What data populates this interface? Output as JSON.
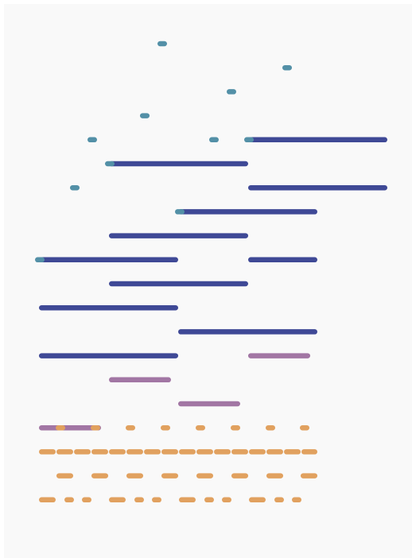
{
  "colors": {
    "background": "#f9f9f9",
    "teal": "#5390a7",
    "navy": "#3f4996",
    "mauve": "#a276a4",
    "orange": "#e1a15f"
  },
  "rows": [
    {
      "row": 0,
      "segments": [
        {
          "start": 154.5,
          "end": 155.5,
          "color": "teal"
        }
      ]
    },
    {
      "row": 1,
      "segments": [
        {
          "start": 311.5,
          "end": 312.5,
          "color": "teal"
        }
      ]
    },
    {
      "row": 2,
      "segments": [
        {
          "start": 241.5,
          "end": 242.5,
          "color": "teal"
        }
      ]
    },
    {
      "row": 3,
      "segments": [
        {
          "start": 132.5,
          "end": 133.5,
          "color": "teal"
        }
      ]
    },
    {
      "row": 4,
      "segments": [
        {
          "start": 66.5,
          "end": 67.5,
          "color": "teal"
        },
        {
          "start": 219.5,
          "end": 220.5,
          "color": "teal"
        },
        {
          "start": 263,
          "end": 438,
          "color": "navy"
        },
        {
          "start": 263.5,
          "end": 264.5,
          "color": "teal"
        }
      ]
    },
    {
      "row": 5,
      "segments": [
        {
          "start": 88,
          "end": 263,
          "color": "navy"
        },
        {
          "start": 88.5,
          "end": 89.5,
          "color": "teal"
        }
      ]
    },
    {
      "row": 6,
      "segments": [
        {
          "start": 44.5,
          "end": 45.5,
          "color": "teal"
        },
        {
          "start": 263,
          "end": 438,
          "color": "navy"
        }
      ]
    },
    {
      "row": 7,
      "segments": [
        {
          "start": 175,
          "end": 350,
          "color": "navy"
        },
        {
          "start": 176.5,
          "end": 177.5,
          "color": "teal"
        }
      ]
    },
    {
      "row": 8,
      "segments": [
        {
          "start": 88,
          "end": 263,
          "color": "navy"
        }
      ]
    },
    {
      "row": 9,
      "segments": [
        {
          "start": 0,
          "end": 175,
          "color": "navy"
        },
        {
          "start": 0.5,
          "end": 1.5,
          "color": "teal"
        },
        {
          "start": 263,
          "end": 350,
          "color": "navy"
        }
      ]
    },
    {
      "row": 10,
      "segments": [
        {
          "start": 88,
          "end": 263,
          "color": "navy"
        }
      ]
    },
    {
      "row": 11,
      "segments": [
        {
          "start": 0,
          "end": 175,
          "color": "navy"
        }
      ]
    },
    {
      "row": 12,
      "segments": [
        {
          "start": 175,
          "end": 350,
          "color": "navy"
        }
      ]
    },
    {
      "row": 13,
      "segments": [
        {
          "start": 0,
          "end": 175,
          "color": "navy"
        },
        {
          "start": 263,
          "end": 341,
          "color": "mauve"
        }
      ]
    },
    {
      "row": 14,
      "segments": [
        {
          "start": 88,
          "end": 166,
          "color": "mauve"
        }
      ]
    },
    {
      "row": 15,
      "segments": [
        {
          "start": 175,
          "end": 253,
          "color": "mauve"
        }
      ]
    },
    {
      "row": 16,
      "segments": [
        {
          "start": 0,
          "end": 78,
          "color": "mauve"
        },
        {
          "start": 22,
          "end": 32,
          "color": "orange"
        },
        {
          "start": 66,
          "end": 76,
          "color": "orange"
        },
        {
          "start": 110,
          "end": 120,
          "color": "orange"
        },
        {
          "start": 154,
          "end": 164,
          "color": "orange"
        },
        {
          "start": 198,
          "end": 208,
          "color": "orange"
        },
        {
          "start": 242,
          "end": 252,
          "color": "orange"
        },
        {
          "start": 286,
          "end": 296,
          "color": "orange"
        },
        {
          "start": 329,
          "end": 339,
          "color": "orange"
        }
      ]
    },
    {
      "row": 17,
      "segments": [
        {
          "start": 0,
          "end": 21,
          "color": "orange"
        },
        {
          "start": 22,
          "end": 43,
          "color": "orange"
        },
        {
          "start": 44,
          "end": 65,
          "color": "orange"
        },
        {
          "start": 66,
          "end": 87,
          "color": "orange"
        },
        {
          "start": 88,
          "end": 109,
          "color": "orange"
        },
        {
          "start": 110,
          "end": 131,
          "color": "orange"
        },
        {
          "start": 132,
          "end": 153,
          "color": "orange"
        },
        {
          "start": 154,
          "end": 175,
          "color": "orange"
        },
        {
          "start": 176,
          "end": 197,
          "color": "orange"
        },
        {
          "start": 198,
          "end": 219,
          "color": "orange"
        },
        {
          "start": 220,
          "end": 241,
          "color": "orange"
        },
        {
          "start": 242,
          "end": 263,
          "color": "orange"
        },
        {
          "start": 264,
          "end": 285,
          "color": "orange"
        },
        {
          "start": 286,
          "end": 307,
          "color": "orange"
        },
        {
          "start": 308,
          "end": 329,
          "color": "orange"
        },
        {
          "start": 330,
          "end": 350,
          "color": "orange"
        }
      ]
    },
    {
      "row": 18,
      "segments": [
        {
          "start": 22,
          "end": 43,
          "color": "orange"
        },
        {
          "start": 66,
          "end": 87,
          "color": "orange"
        },
        {
          "start": 110,
          "end": 131,
          "color": "orange"
        },
        {
          "start": 154,
          "end": 175,
          "color": "orange"
        },
        {
          "start": 198,
          "end": 219,
          "color": "orange"
        },
        {
          "start": 242,
          "end": 263,
          "color": "orange"
        },
        {
          "start": 286,
          "end": 307,
          "color": "orange"
        },
        {
          "start": 329,
          "end": 350,
          "color": "orange"
        }
      ]
    },
    {
      "row": 19,
      "segments": [
        {
          "start": 0,
          "end": 21,
          "color": "orange"
        },
        {
          "start": 33,
          "end": 43,
          "color": "orange"
        },
        {
          "start": 55,
          "end": 65,
          "color": "orange"
        },
        {
          "start": 88,
          "end": 109,
          "color": "orange"
        },
        {
          "start": 121,
          "end": 131,
          "color": "orange"
        },
        {
          "start": 143,
          "end": 153,
          "color": "orange"
        },
        {
          "start": 176,
          "end": 197,
          "color": "orange"
        },
        {
          "start": 209,
          "end": 219,
          "color": "orange"
        },
        {
          "start": 231,
          "end": 241,
          "color": "orange"
        },
        {
          "start": 264,
          "end": 285,
          "color": "orange"
        },
        {
          "start": 297,
          "end": 307,
          "color": "orange"
        },
        {
          "start": 319,
          "end": 329,
          "color": "orange"
        }
      ]
    }
  ]
}
